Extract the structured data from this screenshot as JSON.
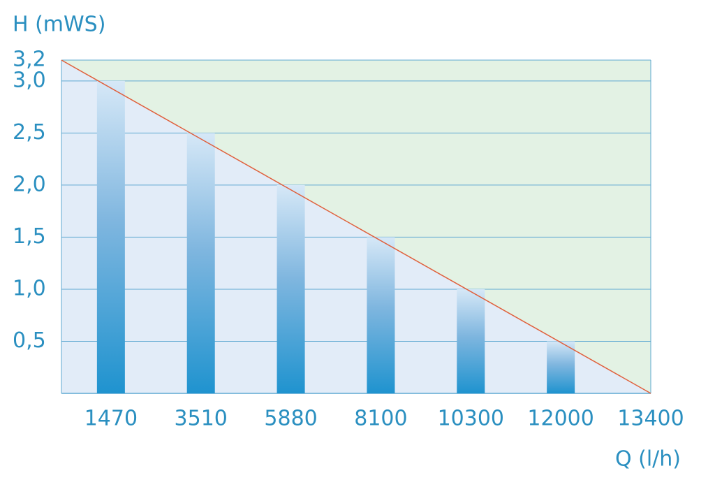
{
  "chart_data": {
    "type": "bar",
    "y_label": "H (mWS)",
    "x_label": "Q (l/h)",
    "categories": [
      "1470",
      "3510",
      "5880",
      "8100",
      "10300",
      "12000",
      "13400"
    ],
    "values": [
      3.0,
      2.5,
      2.0,
      1.5,
      1.0,
      0.5,
      null
    ],
    "ylim": [
      0,
      3.2
    ],
    "yticks": [
      {
        "value": 0.5,
        "label": "0,5"
      },
      {
        "value": 1.0,
        "label": "1,0"
      },
      {
        "value": 1.5,
        "label": "1,5"
      },
      {
        "value": 2.0,
        "label": "2,0"
      },
      {
        "value": 2.5,
        "label": "2,5"
      },
      {
        "value": 3.0,
        "label": "3,0"
      },
      {
        "value": 3.2,
        "label": "3,2"
      }
    ],
    "grid": true,
    "color": "#1f93cf",
    "line_color": "#e0603c"
  }
}
